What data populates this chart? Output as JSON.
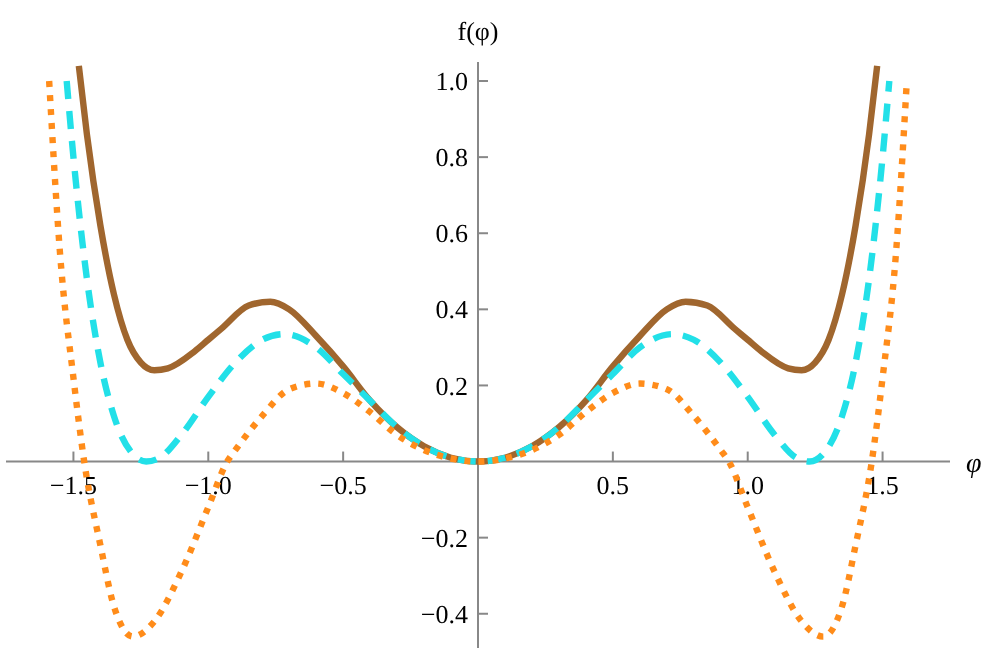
{
  "chart_data": {
    "type": "line",
    "xlabel": "φ",
    "ylabel": "f(φ)",
    "xlim": [
      -1.75,
      1.75
    ],
    "ylim": [
      -0.49,
      1.05
    ],
    "xticks": [
      {
        "value": -1.5,
        "label": "−1.5"
      },
      {
        "value": -1,
        "label": "−1.0"
      },
      {
        "value": -0.5,
        "label": "−0.5"
      },
      {
        "value": 0.5,
        "label": "0.5"
      },
      {
        "value": 1,
        "label": "1.0"
      },
      {
        "value": 1.5,
        "label": "1.5"
      }
    ],
    "yticks": [
      {
        "value": -0.4,
        "label": "−0.4"
      },
      {
        "value": -0.2,
        "label": "−0.2"
      },
      {
        "value": 0.2,
        "label": "0.2"
      },
      {
        "value": 0.4,
        "label": "0.4"
      },
      {
        "value": 0.6,
        "label": "0.6"
      },
      {
        "value": 0.8,
        "label": "0.8"
      },
      {
        "value": 1,
        "label": "1.0"
      }
    ],
    "grid": false,
    "series": [
      {
        "color": "#a0662e",
        "line_style": "solid",
        "x": [
          -1.48,
          -1.45,
          -1.4,
          -1.35,
          -1.3,
          -1.25,
          -1.2,
          -1.15,
          -1.05,
          -1,
          -0.95,
          -0.85,
          -0.77,
          -0.7,
          -0.6,
          -0.5,
          -0.4,
          -0.3,
          -0.2,
          -0.1,
          0,
          0.1,
          0.2,
          0.3,
          0.4,
          0.5,
          0.6,
          0.7,
          0.77,
          0.85,
          0.95,
          1,
          1.05,
          1.15,
          1.2,
          1.25,
          1.3,
          1.35,
          1.4,
          1.45,
          1.48
        ],
        "values": [
          1.04,
          0.86,
          0.62,
          0.44,
          0.32,
          0.26,
          0.24,
          0.245,
          0.29,
          0.32,
          0.35,
          0.41,
          0.42,
          0.4,
          0.33,
          0.25,
          0.16,
          0.09,
          0.04,
          0.01,
          0,
          0.01,
          0.04,
          0.09,
          0.16,
          0.25,
          0.33,
          0.4,
          0.42,
          0.41,
          0.35,
          0.32,
          0.29,
          0.245,
          0.24,
          0.26,
          0.32,
          0.44,
          0.62,
          0.86,
          1.04
        ]
      },
      {
        "color": "#22e0e8",
        "line_style": "dashed",
        "x": [
          -1.525,
          -1.5,
          -1.45,
          -1.4,
          -1.35,
          -1.28,
          -1.23,
          -1.18,
          -1.1,
          -1,
          -0.9,
          -0.8,
          -0.72,
          -0.6,
          -0.5,
          -0.4,
          -0.3,
          -0.2,
          -0.1,
          0,
          0.1,
          0.2,
          0.3,
          0.4,
          0.5,
          0.6,
          0.72,
          0.8,
          0.9,
          1,
          1.1,
          1.18,
          1.23,
          1.28,
          1.35,
          1.4,
          1.45,
          1.5,
          1.525
        ],
        "values": [
          1,
          0.8,
          0.48,
          0.26,
          0.12,
          0.02,
          0,
          0.01,
          0.07,
          0.17,
          0.26,
          0.32,
          0.335,
          0.3,
          0.23,
          0.16,
          0.09,
          0.04,
          0.01,
          0,
          0.01,
          0.04,
          0.09,
          0.16,
          0.23,
          0.3,
          0.335,
          0.32,
          0.26,
          0.17,
          0.07,
          0.01,
          0,
          0.02,
          0.12,
          0.26,
          0.48,
          0.8,
          1
        ]
      },
      {
        "color": "#ff8c1a",
        "line_style": "dotted",
        "x": [
          -1.59,
          -1.55,
          -1.5,
          -1.46,
          -1.4,
          -1.35,
          -1.28,
          -1.2,
          -1.1,
          -1,
          -0.93,
          -0.9,
          -0.8,
          -0.7,
          -0.6,
          -0.5,
          -0.4,
          -0.3,
          -0.2,
          -0.1,
          0,
          0.1,
          0.2,
          0.3,
          0.4,
          0.5,
          0.6,
          0.7,
          0.8,
          0.9,
          0.93,
          1,
          1.1,
          1.2,
          1.28,
          1.35,
          1.4,
          1.46,
          1.5,
          1.55,
          1.59
        ],
        "values": [
          1,
          0.55,
          0.22,
          0,
          -0.22,
          -0.38,
          -0.46,
          -0.42,
          -0.29,
          -0.12,
          0,
          0.03,
          0.12,
          0.19,
          0.205,
          0.18,
          0.13,
          0.07,
          0.03,
          0.008,
          0,
          0.008,
          0.03,
          0.07,
          0.13,
          0.18,
          0.205,
          0.19,
          0.12,
          0.03,
          0,
          -0.12,
          -0.29,
          -0.42,
          -0.46,
          -0.38,
          -0.22,
          0,
          0.22,
          0.55,
          1
        ]
      }
    ]
  }
}
